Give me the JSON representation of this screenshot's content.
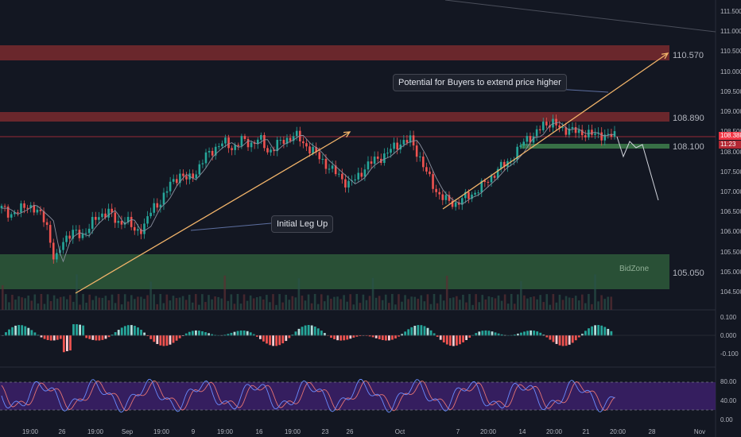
{
  "colors": {
    "background": "#131722",
    "resistance_zone": "#7a2a2e",
    "bid_zone": "#2e5a3a",
    "support_line": "#3d7a4a",
    "up_candle": "#26a69a",
    "down_candle": "#ef5350",
    "trend_arrow": "#f2b46a",
    "stoch_band": "#3a1f66",
    "stoch_k": "#6a8cff",
    "stoch_d": "#e57373",
    "current_price": "#f23645"
  },
  "price_axis": {
    "labels": [
      "111.500",
      "111.000",
      "110.500",
      "110.000",
      "109.500",
      "109.000",
      "108.500",
      "108.000",
      "107.500",
      "107.000",
      "106.500",
      "106.000",
      "105.500",
      "105.000",
      "104.500"
    ],
    "current_price": "108.388",
    "countdown": "11:23"
  },
  "macd_axis": {
    "labels": [
      "0.100",
      "0.000",
      "-0.100"
    ]
  },
  "stoch_axis": {
    "labels": [
      "80.00",
      "40.00",
      "0.00"
    ]
  },
  "time_axis": {
    "labels": [
      "19:00",
      "26",
      "19:00",
      "Sep",
      "19:00",
      "9",
      "19:00",
      "16",
      "19:00",
      "23",
      "26",
      "Oct",
      "7",
      "20:00",
      "14",
      "20:00",
      "21",
      "20:00",
      "28",
      "Nov"
    ]
  },
  "levels": {
    "resistance_high": "110.570",
    "resistance_low": "108.890",
    "support": "108.100",
    "bid_zone_level": "105.050",
    "bid_zone_label": "BidZone"
  },
  "annotations": {
    "buyers_callout": "Potential for Buyers to extend price higher",
    "leg_callout": "Initial Leg Up"
  },
  "chart_data": {
    "type": "candlestick",
    "title": "",
    "ylim": [
      104.3,
      111.6
    ],
    "close_path": [
      106.6,
      106.45,
      106.55,
      106.7,
      106.5,
      106.3,
      105.2,
      105.85,
      106.0,
      105.9,
      106.2,
      106.4,
      106.55,
      106.2,
      106.35,
      106.0,
      106.15,
      106.6,
      106.8,
      107.2,
      107.45,
      107.3,
      107.55,
      107.9,
      108.1,
      108.25,
      108.1,
      108.3,
      108.2,
      108.35,
      108.0,
      108.2,
      108.3,
      108.45,
      108.2,
      108.05,
      107.8,
      107.6,
      107.4,
      107.2,
      107.35,
      107.65,
      107.8,
      107.9,
      108.1,
      108.25,
      108.3,
      107.9,
      107.4,
      107.0,
      106.8,
      106.7,
      106.85,
      106.95,
      107.15,
      107.35,
      107.6,
      107.75,
      108.0,
      108.35,
      108.4,
      108.7,
      108.75,
      108.55,
      108.6,
      108.45,
      108.5,
      108.4,
      108.45,
      108.39
    ],
    "levels": [
      110.57,
      108.89,
      108.1,
      105.05
    ],
    "macd_range": [
      -0.16,
      0.12
    ],
    "stoch_range": [
      0,
      100
    ],
    "stoch_bands": [
      80,
      20
    ]
  }
}
